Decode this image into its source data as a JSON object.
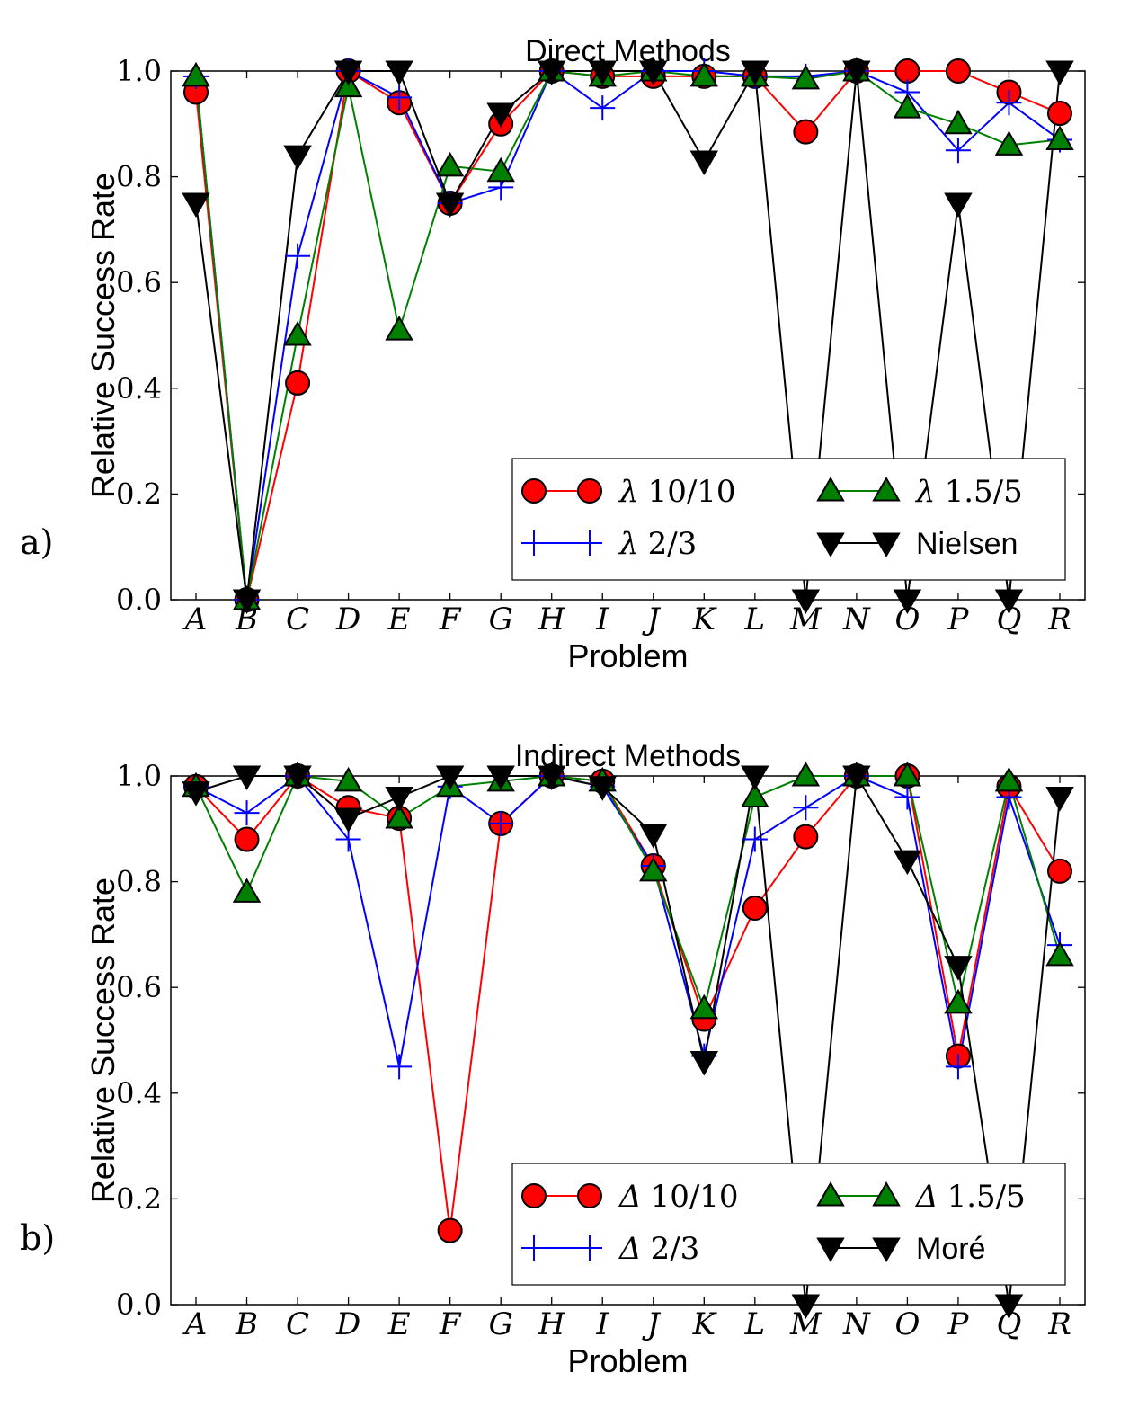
{
  "panels": [
    {
      "panel_label": "a)",
      "legend": {
        "placement": "lower-right",
        "columns": 2,
        "entries": [
          {
            "prefix": "λ",
            "text": "10/10"
          },
          {
            "prefix": "λ",
            "text": "1.5/5"
          },
          {
            "prefix": "λ",
            "text": "2/3"
          },
          {
            "prefix": "",
            "text": "Nielsen"
          }
        ]
      }
    },
    {
      "panel_label": "b)",
      "legend": {
        "placement": "lower-right",
        "columns": 2,
        "entries": [
          {
            "prefix": "Δ",
            "text": "10/10"
          },
          {
            "prefix": "Δ",
            "text": "1.5/5"
          },
          {
            "prefix": "Δ",
            "text": "2/3"
          },
          {
            "prefix": "",
            "text": "Moré"
          }
        ]
      }
    }
  ],
  "series_style": [
    {
      "color": "#ff0000",
      "marker": "circle"
    },
    {
      "color": "#0000ff",
      "marker": "plus"
    },
    {
      "color": "#008000",
      "marker": "triangle-up"
    },
    {
      "color": "#000000",
      "marker": "triangle-down"
    }
  ],
  "chart_data": [
    {
      "type": "line",
      "title": "Direct Methods",
      "xlabel": "Problem",
      "ylabel": "Relative Success Rate",
      "categories": [
        "A",
        "B",
        "C",
        "D",
        "E",
        "F",
        "G",
        "H",
        "I",
        "J",
        "K",
        "L",
        "M",
        "N",
        "O",
        "P",
        "Q",
        "R"
      ],
      "ylim": [
        0.0,
        1.0
      ],
      "yticks": [
        "0.0",
        "0.2",
        "0.4",
        "0.6",
        "0.8",
        "1.0"
      ],
      "grid": false,
      "series": [
        {
          "name": "λ 10/10",
          "values": [
            0.96,
            0.0,
            0.41,
            1.0,
            0.94,
            0.75,
            0.9,
            1.0,
            0.99,
            0.99,
            0.99,
            0.99,
            0.885,
            1.0,
            1.0,
            1.0,
            0.96,
            0.92
          ]
        },
        {
          "name": "λ 2/3",
          "values": [
            0.99,
            0.0,
            0.65,
            1.0,
            0.95,
            0.75,
            0.78,
            1.0,
            0.93,
            1.0,
            1.0,
            0.99,
            0.99,
            1.0,
            0.96,
            0.85,
            0.94,
            0.87
          ]
        },
        {
          "name": "λ 1.5/5",
          "values": [
            0.99,
            0.0,
            0.5,
            0.97,
            0.51,
            0.82,
            0.81,
            1.0,
            0.99,
            1.0,
            0.99,
            0.99,
            0.985,
            1.0,
            0.93,
            0.9,
            0.86,
            0.87
          ]
        },
        {
          "name": "Nielsen",
          "values": [
            0.75,
            0.0,
            0.84,
            1.0,
            1.0,
            0.75,
            0.92,
            1.0,
            1.0,
            1.0,
            0.83,
            1.0,
            0.0,
            1.0,
            0.0,
            0.75,
            0.0,
            1.0
          ]
        }
      ]
    },
    {
      "type": "line",
      "title": "Indirect Methods",
      "xlabel": "Problem",
      "ylabel": "Relative Success Rate",
      "categories": [
        "A",
        "B",
        "C",
        "D",
        "E",
        "F",
        "G",
        "H",
        "I",
        "J",
        "K",
        "L",
        "M",
        "N",
        "O",
        "P",
        "Q",
        "R"
      ],
      "ylim": [
        0.0,
        1.0
      ],
      "yticks": [
        "0.0",
        "0.2",
        "0.4",
        "0.6",
        "0.8",
        "1.0"
      ],
      "grid": false,
      "series": [
        {
          "name": "Δ 10/10",
          "values": [
            0.98,
            0.88,
            1.0,
            0.94,
            0.92,
            0.14,
            0.91,
            1.0,
            0.99,
            0.83,
            0.54,
            0.75,
            0.885,
            1.0,
            1.0,
            0.47,
            0.98,
            0.82
          ]
        },
        {
          "name": "Δ 2/3",
          "values": [
            0.98,
            0.93,
            1.0,
            0.88,
            0.45,
            0.98,
            0.91,
            1.0,
            0.98,
            0.83,
            0.47,
            0.88,
            0.94,
            1.0,
            0.96,
            0.45,
            0.96,
            0.68
          ]
        },
        {
          "name": "Δ 1.5/5",
          "values": [
            0.98,
            0.78,
            1.0,
            0.99,
            0.92,
            0.98,
            0.99,
            1.0,
            0.99,
            0.82,
            0.56,
            0.96,
            1.0,
            1.0,
            1.0,
            0.57,
            0.99,
            0.66
          ]
        },
        {
          "name": "Moré",
          "values": [
            0.97,
            1.0,
            1.0,
            0.92,
            0.96,
            1.0,
            1.0,
            1.0,
            0.98,
            0.89,
            0.46,
            1.0,
            0.0,
            1.0,
            0.84,
            0.64,
            0.0,
            0.96
          ]
        }
      ]
    }
  ]
}
